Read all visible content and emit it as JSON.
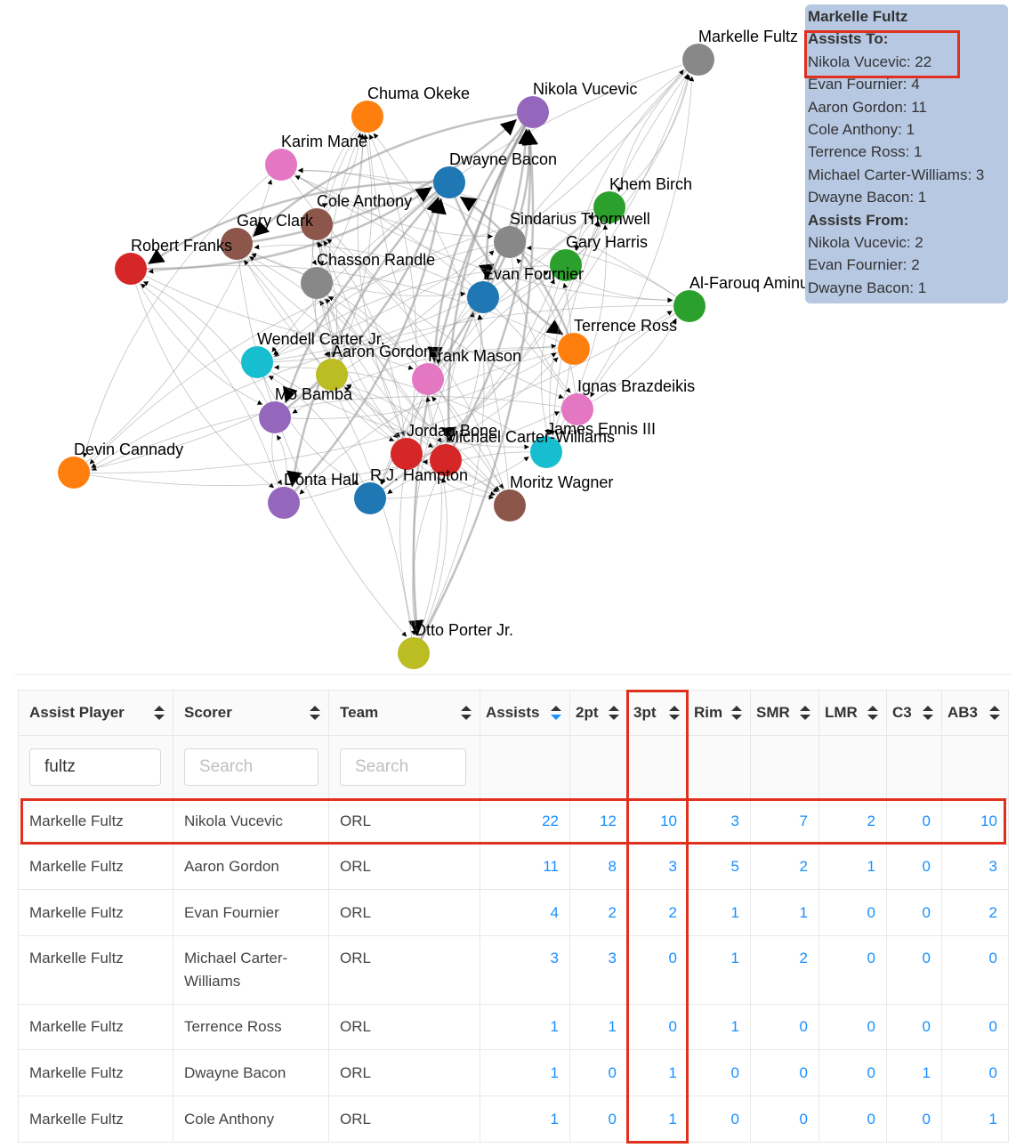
{
  "graph": {
    "nodes": [
      {
        "label": "Markelle Fultz",
        "color": "#888888"
      },
      {
        "label": "Chuma Okeke",
        "color": "#ff7f0e"
      },
      {
        "label": "Nikola Vucevic",
        "color": "#9467bd"
      },
      {
        "label": "Karim Mane",
        "color": "#e377c2"
      },
      {
        "label": "Dwayne Bacon",
        "color": "#1f77b4"
      },
      {
        "label": "Khem Birch",
        "color": "#2ca02c"
      },
      {
        "label": "Cole Anthony",
        "color": "#8c564b"
      },
      {
        "label": "Gary Clark",
        "color": "#8c564b"
      },
      {
        "label": "Sindarius Thornwell",
        "color": "#888888"
      },
      {
        "label": "Robert Franks",
        "color": "#d62728"
      },
      {
        "label": "Gary Harris",
        "color": "#2ca02c"
      },
      {
        "label": "Chasson Randle",
        "color": "#888888"
      },
      {
        "label": "Evan Fournier",
        "color": "#1f77b4"
      },
      {
        "label": "Al-Farouq Aminu",
        "color": "#2ca02c"
      },
      {
        "label": "Terrence Ross",
        "color": "#ff7f0e"
      },
      {
        "label": "Wendell Carter Jr.",
        "color": "#17becf"
      },
      {
        "label": "Aaron Gordon",
        "color": "#bcbd22"
      },
      {
        "label": "Frank Mason",
        "color": "#e377c2"
      },
      {
        "label": "Ignas Brazdeikis",
        "color": "#e377c2"
      },
      {
        "label": "Mo Bamba",
        "color": "#9467bd"
      },
      {
        "label": "James Ennis III",
        "color": "#17becf"
      },
      {
        "label": "Jordan Bone",
        "color": "#d62728"
      },
      {
        "label": "Michael Carter-Williams",
        "color": "#d62728"
      },
      {
        "label": "Devin Cannady",
        "color": "#ff7f0e"
      },
      {
        "label": "Donta Hall",
        "color": "#9467bd"
      },
      {
        "label": "R.J. Hampton",
        "color": "#1f77b4"
      },
      {
        "label": "Moritz Wagner",
        "color": "#8c564b"
      },
      {
        "label": "Otto Porter Jr.",
        "color": "#bcbd22"
      }
    ]
  },
  "tooltip": {
    "title": "Markelle Fultz",
    "sections": [
      {
        "heading": "Assists To:",
        "lines": [
          "Nikola Vucevic: 22",
          "Evan Fournier: 4",
          "Aaron Gordon: 11",
          "Cole Anthony: 1",
          "Terrence Ross: 1",
          "Michael Carter-Williams: 3",
          "Dwayne Bacon: 1"
        ]
      },
      {
        "heading": "Assists From:",
        "lines": [
          "Nikola Vucevic: 2",
          "Evan Fournier: 2",
          "Dwayne Bacon: 1"
        ]
      }
    ]
  },
  "table": {
    "columns": [
      "Assist Player",
      "Scorer",
      "Team",
      "Assists",
      "2pt",
      "3pt",
      "Rim",
      "SMR",
      "LMR",
      "C3",
      "AB3"
    ],
    "filters": [
      {
        "value": "fultz"
      },
      {
        "placeholder": "Search"
      },
      {
        "placeholder": "Search"
      }
    ],
    "rows": [
      [
        "Markelle Fultz",
        "Nikola Vucevic",
        "ORL",
        22,
        12,
        10,
        3,
        7,
        2,
        0,
        10
      ],
      [
        "Markelle Fultz",
        "Aaron Gordon",
        "ORL",
        11,
        8,
        3,
        5,
        2,
        1,
        0,
        3
      ],
      [
        "Markelle Fultz",
        "Evan Fournier",
        "ORL",
        4,
        2,
        2,
        1,
        1,
        0,
        0,
        2
      ],
      [
        "Markelle Fultz",
        "Michael Carter-Williams",
        "ORL",
        3,
        3,
        0,
        1,
        2,
        0,
        0,
        0
      ],
      [
        "Markelle Fultz",
        "Terrence Ross",
        "ORL",
        1,
        1,
        0,
        1,
        0,
        0,
        0,
        0
      ],
      [
        "Markelle Fultz",
        "Dwayne Bacon",
        "ORL",
        1,
        0,
        1,
        0,
        0,
        0,
        1,
        0
      ],
      [
        "Markelle Fultz",
        "Cole Anthony",
        "ORL",
        1,
        0,
        1,
        0,
        0,
        0,
        0,
        1
      ]
    ]
  }
}
